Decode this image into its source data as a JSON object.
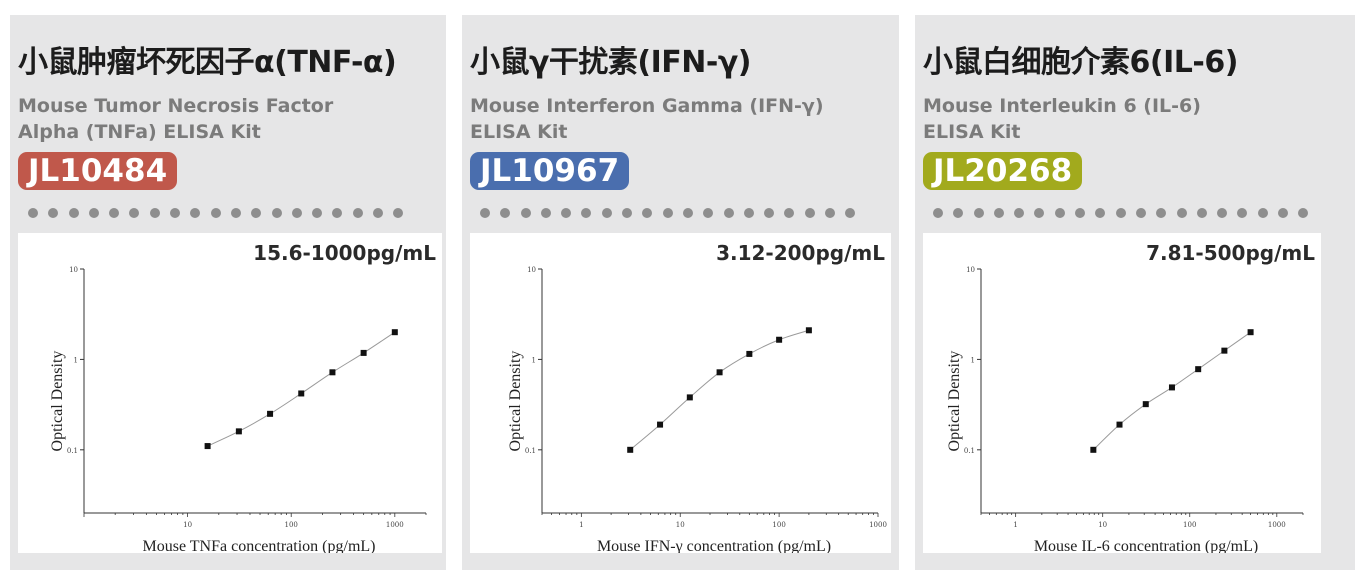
{
  "cards": [
    {
      "title": "小鼠肿瘤坏死因子α(TNF-α)",
      "subtitle_line1": "Mouse Tumor Necrosis Factor",
      "subtitle_line2": "Alpha (TNFa) ELISA Kit",
      "catalog_number": "JL10484",
      "badge_color": "#c0584b",
      "range": "15.6-1000pg/mL"
    },
    {
      "title": "小鼠γ干扰素(IFN-γ)",
      "subtitle_line1": "Mouse Interferon Gamma (IFN-γ)",
      "subtitle_line2": "ELISA Kit",
      "catalog_number": "JL10967",
      "badge_color": "#4a6eae",
      "range": "3.12-200pg/mL"
    },
    {
      "title": "小鼠白细胞介素6(IL-6)",
      "subtitle_line1": "Mouse Interleukin 6 (IL-6)",
      "subtitle_line2": "ELISA Kit",
      "catalog_number": "JL20268",
      "badge_color": "#a2aa1d",
      "range": "7.81-500pg/mL"
    }
  ],
  "chart_data": [
    {
      "type": "scatter",
      "xlabel": "Mouse TNFa concentration (pg/mL)",
      "ylabel": "Optical Density",
      "x_scale": "log",
      "y_scale": "log",
      "x_ticks": [
        "10",
        "100",
        "1000"
      ],
      "y_ticks": [
        "10",
        "1",
        "0.1"
      ],
      "xlim": [
        1,
        2000
      ],
      "ylim": [
        0.02,
        10
      ],
      "series": [
        {
          "x": [
            15.6,
            31.25,
            62.5,
            125,
            250,
            500,
            1000
          ],
          "y": [
            0.11,
            0.16,
            0.25,
            0.42,
            0.72,
            1.18,
            2.0
          ]
        }
      ]
    },
    {
      "type": "scatter",
      "xlabel": "Mouse IFN-γ concentration (pg/mL)",
      "ylabel": "Optical Density",
      "x_scale": "log",
      "y_scale": "log",
      "x_ticks": [
        "1",
        "10",
        "100",
        "1000"
      ],
      "y_ticks": [
        "10",
        "1",
        "0.1"
      ],
      "xlim": [
        0.4,
        1000
      ],
      "ylim": [
        0.02,
        10
      ],
      "series": [
        {
          "x": [
            3.12,
            6.25,
            12.5,
            25,
            50,
            100,
            200
          ],
          "y": [
            0.1,
            0.19,
            0.38,
            0.72,
            1.15,
            1.65,
            2.1
          ]
        }
      ]
    },
    {
      "type": "scatter",
      "xlabel": "Mouse IL-6 concentration (pg/mL)",
      "ylabel": "Optical Density",
      "x_scale": "log",
      "y_scale": "log",
      "x_ticks": [
        "1",
        "10",
        "100",
        "1000"
      ],
      "y_ticks": [
        "10",
        "1",
        "0.1"
      ],
      "xlim": [
        0.4,
        2000
      ],
      "ylim": [
        0.02,
        10
      ],
      "series": [
        {
          "x": [
            7.81,
            15.6,
            31.25,
            62.5,
            125,
            250,
            500
          ],
          "y": [
            0.1,
            0.19,
            0.32,
            0.49,
            0.78,
            1.25,
            2.0
          ]
        }
      ]
    }
  ]
}
